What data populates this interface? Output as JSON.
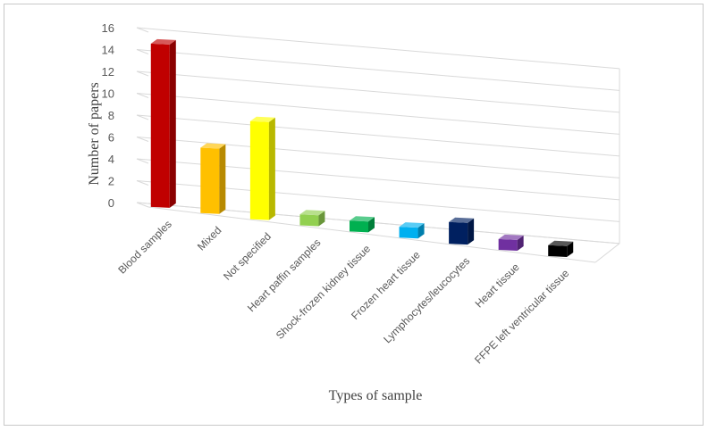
{
  "chart_data": {
    "type": "bar",
    "style": "3d-column",
    "title": "",
    "xlabel": "Types of sample",
    "ylabel": "Number of papers",
    "ylim": [
      0,
      16
    ],
    "yticks": [
      0,
      2,
      4,
      6,
      8,
      10,
      12,
      14,
      16
    ],
    "grid": true,
    "legend": "none",
    "categories": [
      "Blood samples",
      "Mixed",
      "Not specified",
      "Heart paffin samples",
      "Shock-frozen kidney tissue",
      "Frozen heart tissue",
      "Lymphocytes/leucocytes",
      "Heart tissue",
      "FFPE left ventricular tissue"
    ],
    "values": [
      15,
      6,
      9,
      1,
      1,
      1,
      2,
      1,
      1
    ],
    "colors": [
      "#c00000",
      "#ffc000",
      "#ffff00",
      "#92d050",
      "#00b050",
      "#00b0f0",
      "#002060",
      "#7030a0",
      "#000000"
    ]
  }
}
